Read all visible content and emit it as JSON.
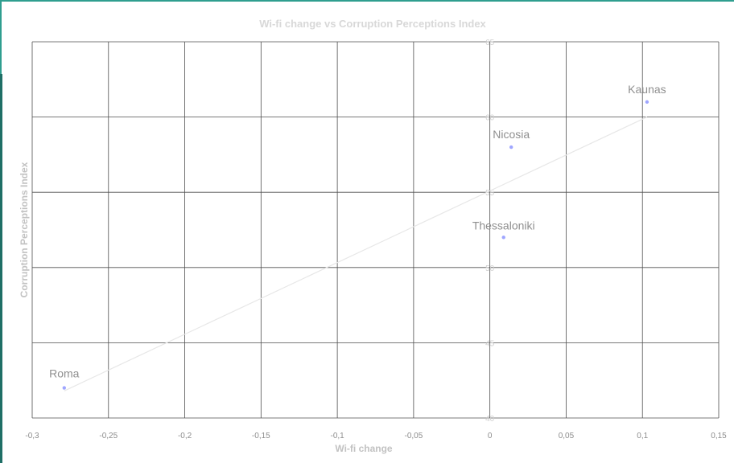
{
  "chart_data": {
    "type": "scatter",
    "title": "Wi-fi change vs Corruption Perceptions Index",
    "xlabel": "Wi-fi change",
    "ylabel": "Corruption Perceptions Index",
    "xlim": [
      -0.3,
      0.15
    ],
    "ylim": [
      40,
      65
    ],
    "x_ticks": [
      "-0,3",
      "-0,25",
      "-0,2",
      "-0,15",
      "-0,1",
      "-0,05",
      "0",
      "0,05",
      "0,1",
      "0,15"
    ],
    "y_ticks": [
      "40",
      "45",
      "50",
      "55",
      "60",
      "65"
    ],
    "grid": true,
    "series": [
      {
        "points": [
          {
            "label": "Kaunas",
            "x": 0.103,
            "y": 61
          },
          {
            "label": "Nicosia",
            "x": 0.014,
            "y": 58
          },
          {
            "label": "Thessaloniki",
            "x": 0.009,
            "y": 52
          },
          {
            "label": "Roma",
            "x": -0.279,
            "y": 42
          }
        ]
      }
    ],
    "trendline": {
      "x": [
        -0.279,
        0.103
      ],
      "y": [
        41.8,
        60
      ]
    },
    "colors": {
      "point": "#9fa6ff",
      "trendline": "#e7e7e7",
      "frame": "#2f9e8f"
    }
  }
}
